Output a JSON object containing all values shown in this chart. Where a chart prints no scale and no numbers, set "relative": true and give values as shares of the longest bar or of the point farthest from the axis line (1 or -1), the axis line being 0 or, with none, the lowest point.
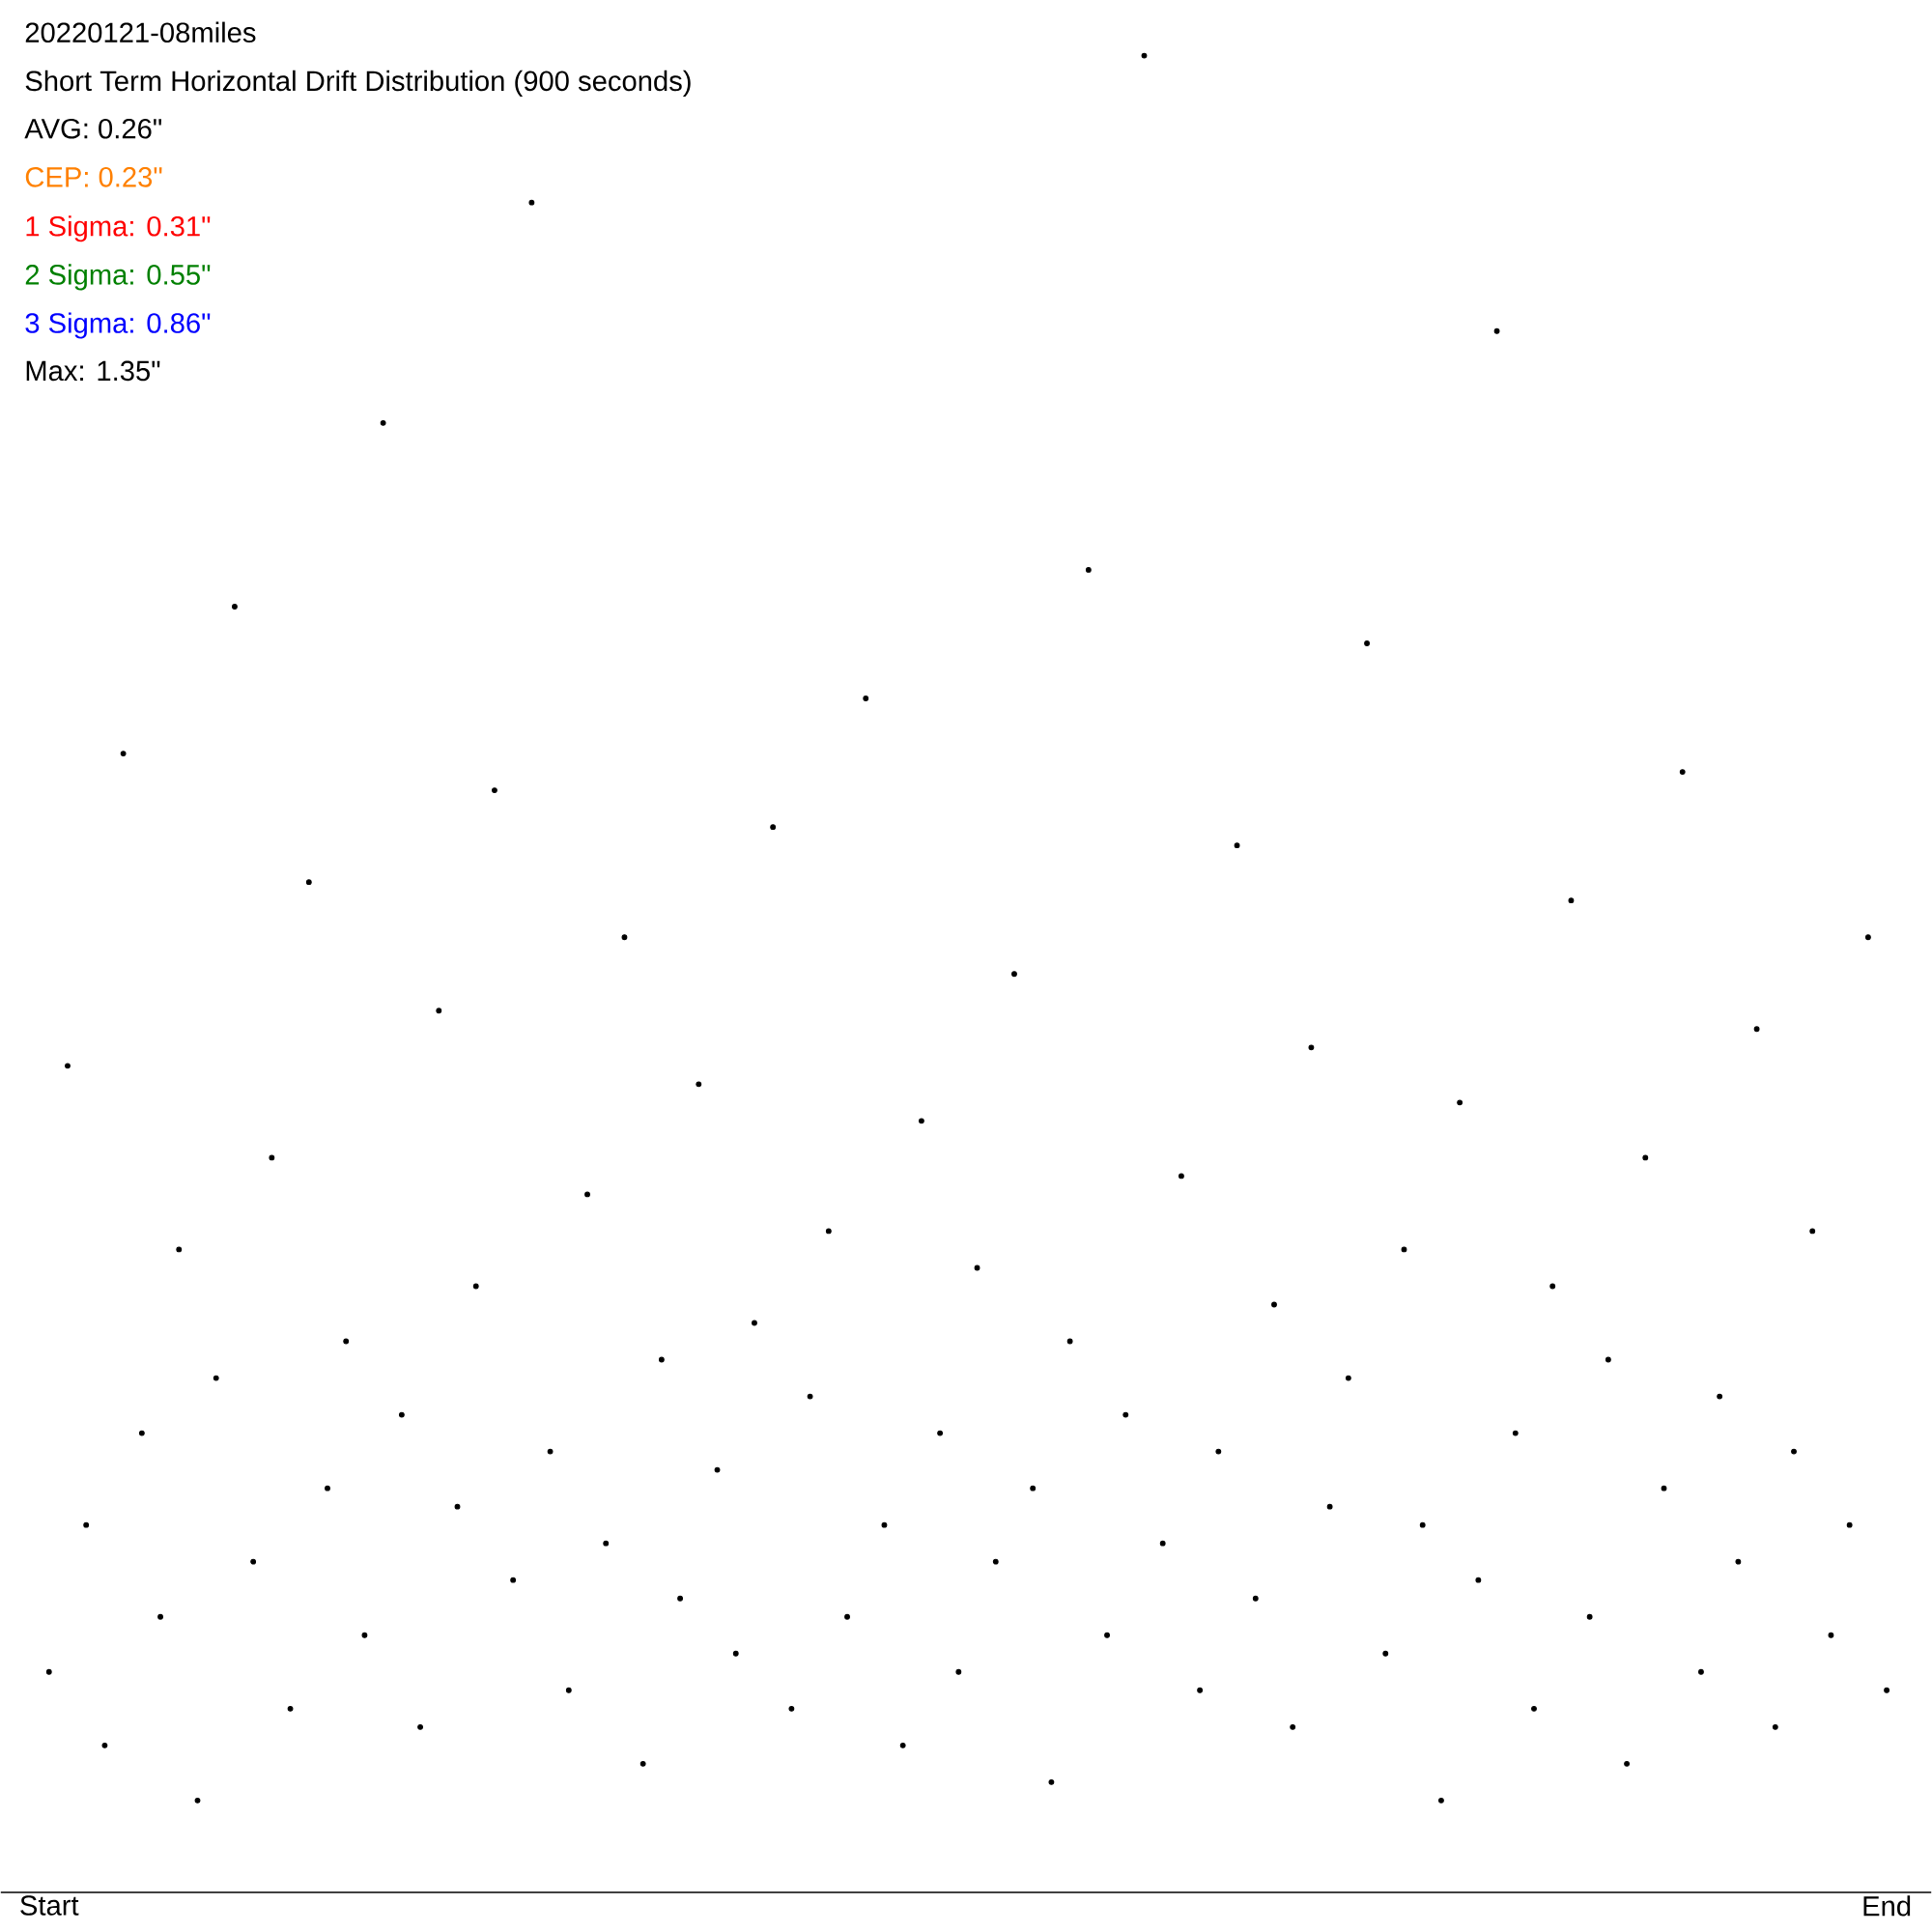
{
  "chart_data": {
    "type": "scatter",
    "relative": true,
    "title": "20220121-08miles",
    "subtitle": "Short Term Horizontal Drift Distribution (900 seconds)",
    "annotations": [
      "AVG: 0.26\"",
      "CEP: 0.23\"",
      "1 Sigma: 0.31\"",
      "2 Sigma: 0.55\"",
      "3 Sigma: 0.86\"",
      "Max: 1.35\""
    ],
    "categories": [
      "Start",
      null,
      null,
      null,
      null,
      null,
      null,
      null,
      null,
      null,
      null,
      null,
      null,
      null,
      null,
      null,
      null,
      null,
      null,
      null,
      null,
      null,
      null,
      null,
      null,
      null,
      null,
      null,
      null,
      null,
      null,
      null,
      null,
      null,
      null,
      null,
      null,
      null,
      null,
      null,
      null,
      null,
      null,
      null,
      null,
      null,
      null,
      null,
      null,
      null,
      null,
      null,
      null,
      null,
      null,
      null,
      null,
      null,
      null,
      null,
      null,
      null,
      null,
      null,
      null,
      null,
      null,
      null,
      null,
      null,
      null,
      null,
      null,
      null,
      null,
      null,
      null,
      null,
      null,
      null,
      null,
      null,
      null,
      null,
      null,
      null,
      null,
      null,
      null,
      null,
      null,
      null,
      null,
      null,
      null,
      null,
      null,
      null,
      null,
      "End"
    ],
    "values": [
      0.12,
      0.45,
      0.2,
      0.08,
      0.62,
      0.25,
      0.15,
      0.35,
      0.05,
      0.28,
      0.7,
      0.18,
      0.4,
      0.1,
      0.55,
      0.22,
      0.3,
      0.14,
      0.8,
      0.26,
      0.09,
      0.48,
      0.21,
      0.33,
      0.6,
      0.17,
      0.92,
      0.24,
      0.11,
      0.38,
      0.19,
      0.52,
      0.07,
      0.29,
      0.16,
      0.44,
      0.23,
      0.13,
      0.31,
      0.58,
      0.1,
      0.27,
      0.36,
      0.15,
      0.65,
      0.2,
      0.08,
      0.42,
      0.25,
      0.12,
      0.34,
      0.18,
      0.5,
      0.22,
      0.06,
      0.3,
      0.72,
      0.14,
      0.26,
      1.0,
      0.19,
      0.39,
      0.11,
      0.24,
      0.57,
      0.16,
      0.32,
      0.09,
      0.46,
      0.21,
      0.28,
      0.68,
      0.13,
      0.35,
      0.2,
      0.05,
      0.43,
      0.17,
      0.85,
      0.25,
      0.1,
      0.33,
      0.54,
      0.15,
      0.29,
      0.07,
      0.4,
      0.22,
      0.61,
      0.12,
      0.27,
      0.18,
      0.47,
      0.09,
      0.24,
      0.36,
      0.14,
      0.2,
      0.52,
      0.11
    ]
  }
}
